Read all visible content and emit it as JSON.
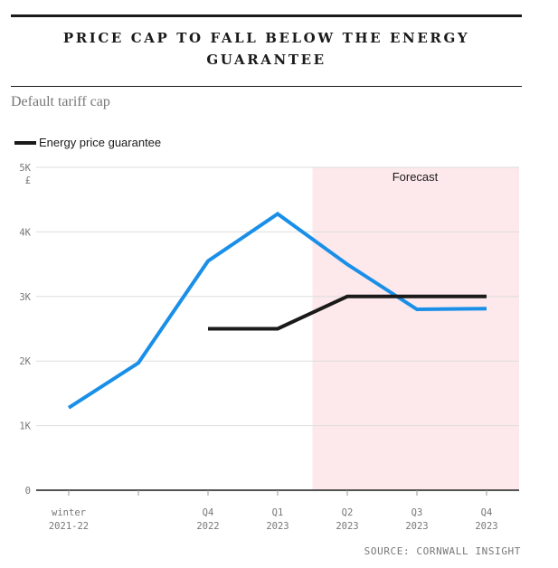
{
  "header": {
    "title": "PRICE CAP TO FALL BELOW THE ENERGY GUARANTEE",
    "subtitle": "Default tariff cap"
  },
  "legend": {
    "items": [
      {
        "label": "Energy price guarantee",
        "color": "#1a1a1a"
      }
    ]
  },
  "source": "SOURCE: CORNWALL INSIGHT",
  "chart_data": {
    "type": "line",
    "title": "PRICE CAP TO FALL BELOW THE ENERGY GUARANTEE",
    "subtitle": "Default tariff cap",
    "xlabel": "",
    "ylabel": "",
    "unit_label": "£",
    "categories": [
      [
        "winter",
        "2021-22"
      ],
      [
        "",
        ""
      ],
      [
        "Q4",
        "2022"
      ],
      [
        "Q1",
        "2023"
      ],
      [
        "Q2",
        "2023"
      ],
      [
        "Q3",
        "2023"
      ],
      [
        "Q4",
        "2023"
      ]
    ],
    "ylim": [
      0,
      5000
    ],
    "yticks": [
      {
        "value": 0,
        "label": "0"
      },
      {
        "value": 1000,
        "label": "1K"
      },
      {
        "value": 2000,
        "label": "2K"
      },
      {
        "value": 3000,
        "label": "3K"
      },
      {
        "value": 4000,
        "label": "4K"
      },
      {
        "value": 5000,
        "label": "5K"
      }
    ],
    "grid": true,
    "legend_position": "top-left",
    "forecast": {
      "label": "Forecast",
      "from": 3.5,
      "to": 6.5,
      "color": "#fde8eb"
    },
    "series": [
      {
        "name": "",
        "color": "#1a8fe8",
        "values": [
          1277,
          1971,
          3549,
          4279,
          3498,
          2801,
          2812
        ],
        "breakpoints": [
          {
            "x": 0,
            "y": 1277
          },
          {
            "x": 1,
            "y": 1971
          },
          {
            "x": 2,
            "y": 3549
          },
          {
            "x": 3,
            "y": 4279
          },
          {
            "x": 4,
            "y": 3498
          },
          {
            "x": 5,
            "y": 2801
          },
          {
            "x": 6,
            "y": 2812
          }
        ]
      },
      {
        "name": "Energy price guarantee",
        "color": "#1a1a1a",
        "breakpoints": [
          {
            "x": 2,
            "y": 2500
          },
          {
            "x": 3,
            "y": 2500
          },
          {
            "x": 4,
            "y": 3000
          },
          {
            "x": 5,
            "y": 3000
          },
          {
            "x": 6,
            "y": 3000
          }
        ]
      }
    ]
  }
}
